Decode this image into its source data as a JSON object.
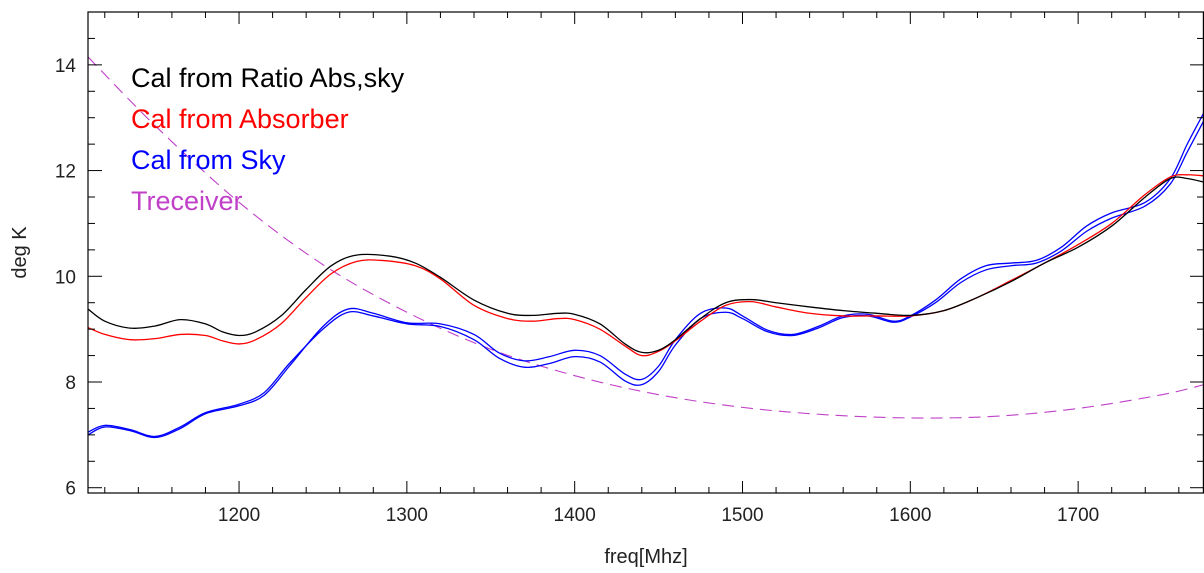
{
  "chart_data": {
    "type": "line",
    "title": "",
    "xlabel": "freq[Mhz]",
    "ylabel": "deg K",
    "xlim": [
      1110,
      1775
    ],
    "ylim": [
      5.9,
      15.0
    ],
    "xticks": [
      1200,
      1300,
      1400,
      1500,
      1600,
      1700
    ],
    "yticks": [
      6,
      8,
      10,
      12,
      14
    ],
    "x_minor_step": 20,
    "y_minor_step": 0.5,
    "grid": false,
    "legend_position": "top-left",
    "series": [
      {
        "name": "Cal from Ratio Abs,sky",
        "color": "#000000",
        "dash": "solid",
        "points": [
          [
            1110,
            9.38
          ],
          [
            1120,
            9.15
          ],
          [
            1135,
            9.02
          ],
          [
            1150,
            9.06
          ],
          [
            1165,
            9.18
          ],
          [
            1180,
            9.1
          ],
          [
            1190,
            8.95
          ],
          [
            1200,
            8.88
          ],
          [
            1210,
            8.95
          ],
          [
            1225,
            9.25
          ],
          [
            1240,
            9.75
          ],
          [
            1255,
            10.2
          ],
          [
            1270,
            10.4
          ],
          [
            1290,
            10.38
          ],
          [
            1305,
            10.25
          ],
          [
            1320,
            9.98
          ],
          [
            1340,
            9.55
          ],
          [
            1360,
            9.3
          ],
          [
            1375,
            9.26
          ],
          [
            1390,
            9.3
          ],
          [
            1400,
            9.28
          ],
          [
            1415,
            9.1
          ],
          [
            1430,
            8.72
          ],
          [
            1440,
            8.56
          ],
          [
            1450,
            8.6
          ],
          [
            1460,
            8.8
          ],
          [
            1475,
            9.2
          ],
          [
            1490,
            9.5
          ],
          [
            1505,
            9.56
          ],
          [
            1520,
            9.5
          ],
          [
            1540,
            9.42
          ],
          [
            1560,
            9.35
          ],
          [
            1580,
            9.3
          ],
          [
            1600,
            9.26
          ],
          [
            1620,
            9.35
          ],
          [
            1640,
            9.6
          ],
          [
            1660,
            9.9
          ],
          [
            1680,
            10.25
          ],
          [
            1700,
            10.55
          ],
          [
            1720,
            10.95
          ],
          [
            1740,
            11.5
          ],
          [
            1755,
            11.85
          ],
          [
            1765,
            11.85
          ],
          [
            1775,
            11.78
          ]
        ]
      },
      {
        "name": "Cal from Absorber",
        "color": "#ff0000",
        "dash": "solid",
        "points": [
          [
            1110,
            9.03
          ],
          [
            1120,
            8.9
          ],
          [
            1135,
            8.8
          ],
          [
            1150,
            8.82
          ],
          [
            1165,
            8.9
          ],
          [
            1180,
            8.88
          ],
          [
            1190,
            8.78
          ],
          [
            1200,
            8.72
          ],
          [
            1210,
            8.8
          ],
          [
            1225,
            9.1
          ],
          [
            1240,
            9.6
          ],
          [
            1255,
            10.05
          ],
          [
            1270,
            10.28
          ],
          [
            1285,
            10.3
          ],
          [
            1305,
            10.2
          ],
          [
            1320,
            9.95
          ],
          [
            1340,
            9.45
          ],
          [
            1360,
            9.2
          ],
          [
            1375,
            9.15
          ],
          [
            1390,
            9.2
          ],
          [
            1400,
            9.18
          ],
          [
            1415,
            9.0
          ],
          [
            1430,
            8.68
          ],
          [
            1440,
            8.5
          ],
          [
            1450,
            8.58
          ],
          [
            1460,
            8.78
          ],
          [
            1475,
            9.15
          ],
          [
            1490,
            9.45
          ],
          [
            1505,
            9.52
          ],
          [
            1520,
            9.42
          ],
          [
            1540,
            9.3
          ],
          [
            1560,
            9.25
          ],
          [
            1580,
            9.25
          ],
          [
            1600,
            9.25
          ],
          [
            1620,
            9.35
          ],
          [
            1640,
            9.6
          ],
          [
            1660,
            9.92
          ],
          [
            1680,
            10.25
          ],
          [
            1700,
            10.6
          ],
          [
            1720,
            11.0
          ],
          [
            1740,
            11.55
          ],
          [
            1755,
            11.88
          ],
          [
            1765,
            11.92
          ],
          [
            1775,
            11.9
          ]
        ]
      },
      {
        "name": "Cal from Sky",
        "color": "#0000ff",
        "dash": "solid",
        "points": [
          [
            1110,
            7.0
          ],
          [
            1120,
            7.15
          ],
          [
            1135,
            7.08
          ],
          [
            1150,
            6.95
          ],
          [
            1165,
            7.12
          ],
          [
            1180,
            7.4
          ],
          [
            1200,
            7.55
          ],
          [
            1215,
            7.75
          ],
          [
            1230,
            8.3
          ],
          [
            1250,
            9.05
          ],
          [
            1265,
            9.38
          ],
          [
            1280,
            9.3
          ],
          [
            1300,
            9.12
          ],
          [
            1320,
            9.1
          ],
          [
            1340,
            8.9
          ],
          [
            1355,
            8.55
          ],
          [
            1370,
            8.4
          ],
          [
            1385,
            8.48
          ],
          [
            1400,
            8.6
          ],
          [
            1415,
            8.5
          ],
          [
            1430,
            8.15
          ],
          [
            1440,
            8.05
          ],
          [
            1450,
            8.3
          ],
          [
            1460,
            8.8
          ],
          [
            1475,
            9.3
          ],
          [
            1490,
            9.4
          ],
          [
            1500,
            9.25
          ],
          [
            1515,
            8.98
          ],
          [
            1530,
            8.9
          ],
          [
            1545,
            9.05
          ],
          [
            1560,
            9.25
          ],
          [
            1575,
            9.28
          ],
          [
            1590,
            9.15
          ],
          [
            1600,
            9.25
          ],
          [
            1615,
            9.55
          ],
          [
            1630,
            9.95
          ],
          [
            1645,
            10.2
          ],
          [
            1660,
            10.25
          ],
          [
            1675,
            10.3
          ],
          [
            1690,
            10.55
          ],
          [
            1705,
            10.95
          ],
          [
            1720,
            11.2
          ],
          [
            1740,
            11.4
          ],
          [
            1755,
            11.85
          ],
          [
            1765,
            12.5
          ],
          [
            1775,
            13.1
          ]
        ]
      },
      {
        "name": "Cal from Sky",
        "color": "#0000ff",
        "dash": "solid",
        "points": [
          [
            1110,
            7.05
          ],
          [
            1120,
            7.18
          ],
          [
            1135,
            7.1
          ],
          [
            1150,
            6.97
          ],
          [
            1165,
            7.15
          ],
          [
            1180,
            7.42
          ],
          [
            1200,
            7.58
          ],
          [
            1215,
            7.8
          ],
          [
            1230,
            8.35
          ],
          [
            1250,
            9.0
          ],
          [
            1265,
            9.32
          ],
          [
            1280,
            9.25
          ],
          [
            1300,
            9.1
          ],
          [
            1320,
            9.05
          ],
          [
            1340,
            8.8
          ],
          [
            1355,
            8.45
          ],
          [
            1370,
            8.28
          ],
          [
            1385,
            8.35
          ],
          [
            1400,
            8.48
          ],
          [
            1415,
            8.38
          ],
          [
            1430,
            8.02
          ],
          [
            1440,
            7.95
          ],
          [
            1450,
            8.2
          ],
          [
            1460,
            8.7
          ],
          [
            1475,
            9.2
          ],
          [
            1490,
            9.32
          ],
          [
            1500,
            9.2
          ],
          [
            1515,
            8.95
          ],
          [
            1530,
            8.88
          ],
          [
            1545,
            9.02
          ],
          [
            1560,
            9.22
          ],
          [
            1575,
            9.25
          ],
          [
            1590,
            9.13
          ],
          [
            1600,
            9.23
          ],
          [
            1615,
            9.5
          ],
          [
            1630,
            9.88
          ],
          [
            1645,
            10.12
          ],
          [
            1660,
            10.2
          ],
          [
            1675,
            10.25
          ],
          [
            1690,
            10.48
          ],
          [
            1705,
            10.85
          ],
          [
            1720,
            11.1
          ],
          [
            1740,
            11.33
          ],
          [
            1755,
            11.75
          ],
          [
            1765,
            12.35
          ],
          [
            1775,
            12.95
          ]
        ]
      },
      {
        "name": "Treceiver",
        "color": "#c040c8",
        "dash": "dashed",
        "points": [
          [
            1110,
            14.15
          ],
          [
            1150,
            12.85
          ],
          [
            1200,
            11.4
          ],
          [
            1250,
            10.22
          ],
          [
            1300,
            9.32
          ],
          [
            1350,
            8.62
          ],
          [
            1400,
            8.12
          ],
          [
            1450,
            7.76
          ],
          [
            1500,
            7.52
          ],
          [
            1550,
            7.38
          ],
          [
            1600,
            7.32
          ],
          [
            1650,
            7.35
          ],
          [
            1700,
            7.5
          ],
          [
            1750,
            7.76
          ],
          [
            1775,
            7.95
          ]
        ]
      }
    ]
  }
}
